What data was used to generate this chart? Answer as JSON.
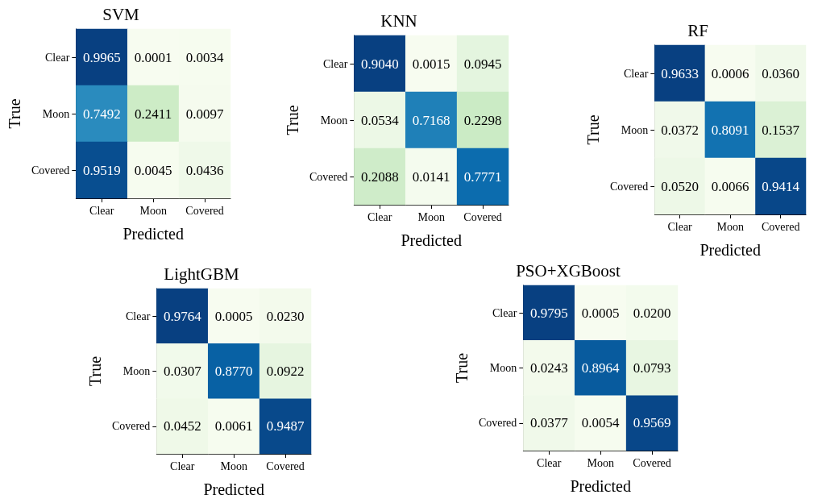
{
  "chart_data": [
    {
      "type": "heatmap",
      "title": "SVM",
      "xlabel": "Predicted",
      "ylabel": "True",
      "categories": [
        "Clear",
        "Moon",
        "Covered"
      ],
      "y_categories": [
        "Clear",
        "Moon",
        "Covered"
      ],
      "cells": [
        [
          0.9965,
          0.0001,
          0.0034
        ],
        [
          0.7492,
          0.2411,
          0.0097
        ],
        [
          0.9519,
          0.0045,
          0.0436
        ]
      ],
      "cell_labels": [
        [
          "0.9965",
          "0.0001",
          "0.0034"
        ],
        [
          "0.7492",
          "0.2411",
          "0.0097"
        ],
        [
          "0.9519",
          "0.0045",
          "0.0436"
        ]
      ]
    },
    {
      "type": "heatmap",
      "title": "KNN",
      "xlabel": "Predicted",
      "ylabel": "True",
      "categories": [
        "Clear",
        "Moon",
        "Covered"
      ],
      "y_categories": [
        "Clear",
        "Moon",
        "Covered"
      ],
      "cells": [
        [
          0.904,
          0.0015,
          0.0945
        ],
        [
          0.0534,
          0.7168,
          0.2298
        ],
        [
          0.2088,
          0.0141,
          0.7771
        ]
      ],
      "cell_labels": [
        [
          "0.9040",
          "0.0015",
          "0.0945"
        ],
        [
          "0.0534",
          "0.7168",
          "0.2298"
        ],
        [
          "0.2088",
          "0.0141",
          "0.7771"
        ]
      ]
    },
    {
      "type": "heatmap",
      "title": "RF",
      "xlabel": "Predicted",
      "ylabel": "True",
      "categories": [
        "Clear",
        "Moon",
        "Covered"
      ],
      "y_categories": [
        "Clear",
        "Moon",
        "Covered"
      ],
      "cells": [
        [
          0.9633,
          0.0006,
          0.036
        ],
        [
          0.0372,
          0.8091,
          0.1537
        ],
        [
          0.052,
          0.0066,
          0.9414
        ]
      ],
      "cell_labels": [
        [
          "0.9633",
          "0.0006",
          "0.0360"
        ],
        [
          "0.0372",
          "0.8091",
          "0.1537"
        ],
        [
          "0.0520",
          "0.0066",
          "0.9414"
        ]
      ]
    },
    {
      "type": "heatmap",
      "title": "LightGBM",
      "xlabel": "Predicted",
      "ylabel": "True",
      "categories": [
        "Clear",
        "Moon",
        "Covered"
      ],
      "y_categories": [
        "Clear",
        "Moon",
        "Covered"
      ],
      "cells": [
        [
          0.9764,
          0.0005,
          0.023
        ],
        [
          0.0307,
          0.877,
          0.0922
        ],
        [
          0.0452,
          0.0061,
          0.9487
        ]
      ],
      "cell_labels": [
        [
          "0.9764",
          "0.0005",
          "0.0230"
        ],
        [
          "0.0307",
          "0.8770",
          "0.0922"
        ],
        [
          "0.0452",
          "0.0061",
          "0.9487"
        ]
      ]
    },
    {
      "type": "heatmap",
      "title": "PSO+XGBoost",
      "xlabel": "Predicted",
      "ylabel": "True",
      "categories": [
        "Clear",
        "Moon",
        "Covered"
      ],
      "y_categories": [
        "Clear",
        "Moon",
        "Covered"
      ],
      "cells": [
        [
          0.9795,
          0.0005,
          0.02
        ],
        [
          0.0243,
          0.8964,
          0.0793
        ],
        [
          0.0377,
          0.0054,
          0.9569
        ]
      ],
      "cell_labels": [
        [
          "0.9795",
          "0.0005",
          "0.0200"
        ],
        [
          "0.0243",
          "0.8964",
          "0.0793"
        ],
        [
          "0.0377",
          "0.0054",
          "0.9569"
        ]
      ]
    }
  ]
}
